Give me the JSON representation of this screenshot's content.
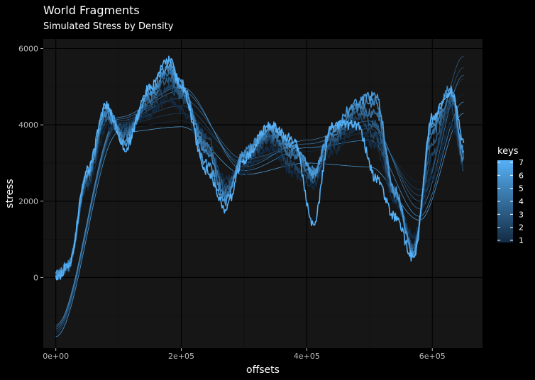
{
  "title": "World Fragments",
  "subtitle": "Simulated Stress by Density",
  "colors": {
    "background": "#000000",
    "panel": "#161616",
    "grid_major": "#000000",
    "grid_minor": "#0d0d0d",
    "low": "#132B43",
    "high": "#56B1F7"
  },
  "chart_data": {
    "type": "line",
    "xlabel": "offsets",
    "ylabel": "stress",
    "xlim": [
      -20000,
      680000
    ],
    "ylim": [
      -1850,
      6250
    ],
    "x_ticks": [
      0,
      200000,
      400000,
      600000
    ],
    "x_tick_labels": [
      "0e+00",
      "2e+05",
      "4e+05",
      "6e+05"
    ],
    "y_ticks": [
      0,
      2000,
      4000,
      6000
    ],
    "y_tick_labels": [
      "0",
      "2000",
      "4000",
      "6000"
    ],
    "grid": true,
    "legend": {
      "title": "keys",
      "position": "right",
      "labels": [
        "7",
        "6",
        "5",
        "4",
        "3",
        "2",
        "1"
      ],
      "range": [
        1,
        7
      ]
    },
    "series": [
      {
        "key": 1,
        "x": [
          0,
          20000,
          50000,
          80000,
          110000,
          150000,
          180000,
          200000,
          240000,
          270000,
          300000,
          340000,
          380000,
          410000,
          440000,
          480000,
          510000,
          540000,
          570000,
          600000,
          630000,
          650000
        ],
        "y": [
          100,
          300,
          2400,
          3900,
          4000,
          4300,
          4700,
          4400,
          3300,
          2600,
          2800,
          3400,
          2700,
          2400,
          3300,
          3900,
          3400,
          2000,
          1100,
          2600,
          4000,
          3400
        ]
      },
      {
        "key": 2,
        "x": [
          0,
          20000,
          50000,
          80000,
          110000,
          150000,
          180000,
          200000,
          240000,
          270000,
          300000,
          340000,
          380000,
          410000,
          440000,
          480000,
          510000,
          540000,
          570000,
          600000,
          630000,
          650000
        ],
        "y": [
          0,
          250,
          2500,
          4100,
          3900,
          4500,
          5000,
          4700,
          3700,
          2400,
          3000,
          3600,
          2900,
          2600,
          3500,
          4200,
          3700,
          2100,
          900,
          3200,
          4500,
          2900
        ]
      },
      {
        "key": 3,
        "x": [
          0,
          20000,
          50000,
          80000,
          110000,
          150000,
          180000,
          200000,
          240000,
          270000,
          300000,
          340000,
          380000,
          410000,
          440000,
          480000,
          510000,
          540000,
          570000,
          600000,
          630000,
          650000
        ],
        "y": [
          50,
          300,
          2600,
          4200,
          3800,
          4600,
          5200,
          4800,
          3400,
          2300,
          3100,
          3700,
          3300,
          2600,
          3600,
          4300,
          4000,
          2200,
          800,
          3500,
          4700,
          3100
        ]
      },
      {
        "key": 4,
        "x": [
          0,
          20000,
          50000,
          80000,
          110000,
          150000,
          180000,
          200000,
          240000,
          270000,
          300000,
          340000,
          380000,
          410000,
          440000,
          480000,
          510000,
          540000,
          570000,
          600000,
          630000,
          650000
        ],
        "y": [
          0,
          300,
          2600,
          4400,
          3700,
          4700,
          5400,
          4900,
          3500,
          2200,
          3200,
          3800,
          3200,
          2700,
          3700,
          4400,
          4300,
          2300,
          700,
          3800,
          4800,
          3200
        ]
      },
      {
        "key": 5,
        "x": [
          0,
          20000,
          50000,
          80000,
          110000,
          150000,
          180000,
          200000,
          240000,
          270000,
          300000,
          340000,
          380000,
          410000,
          440000,
          480000,
          510000,
          540000,
          570000,
          600000,
          630000,
          650000
        ],
        "y": [
          100,
          350,
          2700,
          4300,
          3600,
          4800,
          5500,
          5000,
          3300,
          2100,
          3300,
          3900,
          3400,
          2800,
          3800,
          4500,
          4600,
          2200,
          650,
          4000,
          5000,
          3000
        ]
      },
      {
        "key": 6,
        "x": [
          0,
          20000,
          50000,
          80000,
          110000,
          150000,
          180000,
          200000,
          240000,
          270000,
          300000,
          340000,
          380000,
          410000,
          440000,
          480000,
          510000,
          540000,
          570000,
          600000,
          630000,
          650000
        ],
        "y": [
          50,
          300,
          2700,
          4500,
          3500,
          4900,
          5600,
          5100,
          3000,
          2000,
          3200,
          3900,
          3500,
          2700,
          3900,
          4600,
          4800,
          2300,
          600,
          4100,
          4900,
          3300
        ]
      },
      {
        "key": 7,
        "x": [
          0,
          20000,
          50000,
          80000,
          110000,
          150000,
          180000,
          200000,
          240000,
          270000,
          300000,
          340000,
          380000,
          410000,
          440000,
          480000,
          510000,
          540000,
          570000,
          600000,
          630000,
          650000
        ],
        "y": [
          0,
          250,
          2800,
          4500,
          3400,
          5000,
          5700,
          5000,
          2800,
          1800,
          3100,
          4000,
          3600,
          1400,
          4000,
          4000,
          2600,
          1600,
          500,
          4200,
          4900,
          3600
        ]
      }
    ],
    "smooth_lines": [
      {
        "key": 1,
        "x": [
          0,
          100000,
          200000,
          300000,
          400000,
          500000,
          580000,
          650000
        ],
        "y": [
          -1500,
          3900,
          4100,
          3000,
          3300,
          3700,
          2500,
          4800
        ]
      },
      {
        "key": 2,
        "x": [
          0,
          100000,
          200000,
          300000,
          400000,
          500000,
          580000,
          650000
        ],
        "y": [
          -1450,
          4000,
          4300,
          3100,
          3400,
          3800,
          2300,
          5200
        ]
      },
      {
        "key": 3,
        "x": [
          0,
          100000,
          200000,
          300000,
          400000,
          500000,
          580000,
          650000
        ],
        "y": [
          -1400,
          4050,
          4500,
          3000,
          3500,
          3900,
          2150,
          5500
        ]
      },
      {
        "key": 4,
        "x": [
          0,
          100000,
          200000,
          300000,
          400000,
          500000,
          580000,
          650000
        ],
        "y": [
          -1350,
          4100,
          4700,
          3100,
          3500,
          4000,
          2000,
          5800
        ]
      },
      {
        "key": 5,
        "x": [
          0,
          100000,
          200000,
          300000,
          400000,
          500000,
          580000,
          650000
        ],
        "y": [
          -1300,
          4150,
          4900,
          2900,
          3600,
          4100,
          1800,
          5300
        ]
      },
      {
        "key": 6,
        "x": [
          0,
          100000,
          200000,
          300000,
          400000,
          500000,
          580000,
          650000
        ],
        "y": [
          -1250,
          4200,
          5000,
          2800,
          3400,
          3600,
          1600,
          4600
        ]
      },
      {
        "key": 7,
        "x": [
          0,
          100000,
          200000,
          300000,
          400000,
          500000,
          580000,
          650000
        ],
        "y": [
          -1550,
          3800,
          3950,
          2700,
          3000,
          2900,
          1500,
          4300
        ]
      }
    ]
  }
}
